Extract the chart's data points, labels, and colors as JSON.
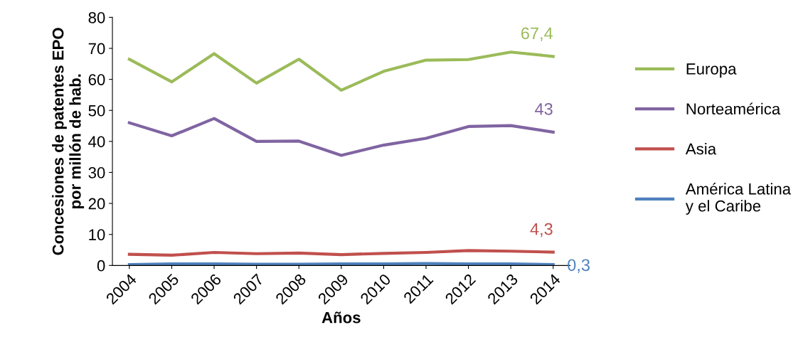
{
  "chart_data": {
    "type": "line",
    "xlabel": "Años",
    "ylabel": "Concesiones de patentes EPO\npor millón de hab.",
    "categories": [
      "2004",
      "2005",
      "2006",
      "2007",
      "2008",
      "2009",
      "2010",
      "2011",
      "2012",
      "2013",
      "2014"
    ],
    "ylim": [
      0,
      80
    ],
    "yticks": [
      0,
      10,
      20,
      30,
      40,
      50,
      60,
      70,
      80
    ],
    "grid": false,
    "legend": "right",
    "marker": "none",
    "line_style": "solid",
    "series": [
      {
        "name": "Europa",
        "color": "#9bbb59",
        "values": [
          66.5,
          59.2,
          68.3,
          58.8,
          66.5,
          56.5,
          62.6,
          66.2,
          66.4,
          68.8,
          67.4
        ]
      },
      {
        "name": "Norteamérica",
        "color": "#8064a2",
        "values": [
          46.0,
          41.8,
          47.4,
          40.0,
          40.1,
          35.5,
          38.8,
          41.0,
          44.8,
          45.1,
          43
        ]
      },
      {
        "name": "Asia",
        "color": "#c0504d",
        "values": [
          3.6,
          3.3,
          4.2,
          3.8,
          4.0,
          3.5,
          3.9,
          4.2,
          4.8,
          4.6,
          4.3
        ]
      },
      {
        "name": "América Latina\ny el Caribe",
        "color": "#4f81bd",
        "values": [
          0.3,
          0.5,
          0.5,
          0.4,
          0.4,
          0.5,
          0.5,
          0.6,
          0.5,
          0.5,
          0.3
        ]
      }
    ],
    "annotations": [
      {
        "text": "67,4",
        "x": "2014",
        "y": 67.4
      },
      {
        "text": "43",
        "x": "2014",
        "y": 43
      },
      {
        "text": "4,3",
        "x": "2014",
        "y": 4.3
      },
      {
        "text": "0,3",
        "x": "2014",
        "y": 0.3
      }
    ]
  }
}
